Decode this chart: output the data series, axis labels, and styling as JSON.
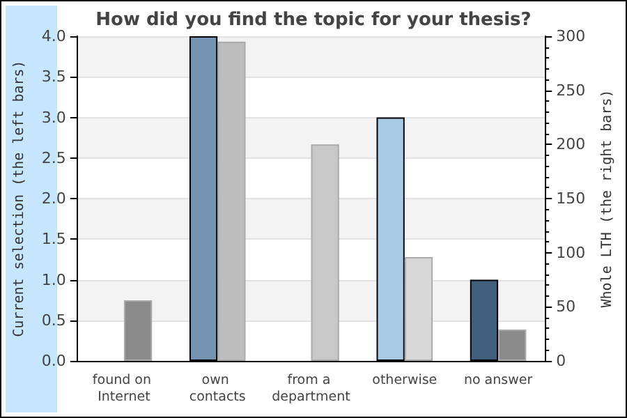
{
  "chart_data": {
    "type": "bar",
    "title": "How did you find the topic for your thesis?",
    "ylabel": "Current selection (the left bars)",
    "y2label": "Whole LTH (the right bars)",
    "categories": [
      "found on Internet",
      "own contacts",
      "from a department",
      "otherwise",
      "no answer"
    ],
    "series": [
      {
        "colors": [
          "#7393b0",
          "#7393b0",
          "#7393b0",
          "#a9cbe6",
          "#3f5f7c"
        ],
        "values": [
          0,
          4,
          0,
          3,
          1
        ]
      },
      {
        "axis": "y2",
        "colors": [
          "#8a8a8a",
          "#bdbdbd",
          "#c8c8c8",
          "#d8d8d8",
          "#8a8a8a"
        ],
        "values": [
          56,
          295,
          200,
          96,
          29
        ]
      }
    ],
    "ylim": [
      0,
      4
    ],
    "yticks": [
      {
        "value": 0,
        "label": "0.0"
      },
      {
        "value": 0.5,
        "label": "0.5"
      },
      {
        "value": 1,
        "label": "1.0"
      },
      {
        "value": 1.5,
        "label": "1.5"
      },
      {
        "value": 2,
        "label": "2.0"
      },
      {
        "value": 2.5,
        "label": "2.5"
      },
      {
        "value": 3,
        "label": "3.0"
      },
      {
        "value": 3.5,
        "label": "3.5"
      },
      {
        "value": 4,
        "label": "4.0"
      }
    ],
    "y2lim": [
      0,
      300
    ],
    "y2ticks": [
      0,
      50,
      100,
      150,
      200,
      250,
      300
    ],
    "grid": "y"
  }
}
